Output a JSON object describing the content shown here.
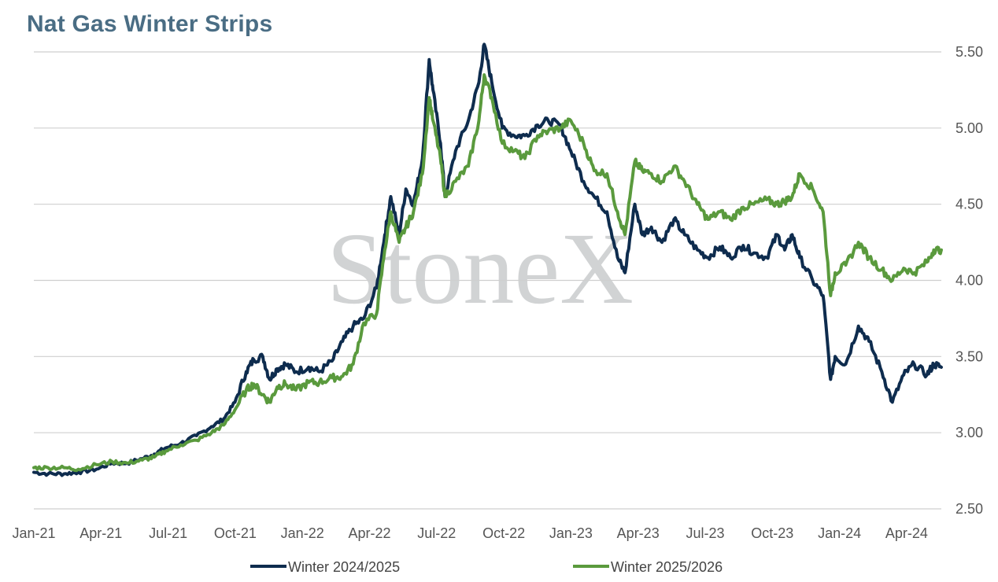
{
  "title": "Nat Gas Winter Strips",
  "watermark": "StoneX",
  "chart_data": {
    "type": "line",
    "title": "Nat Gas Winter Strips",
    "xlabel": "",
    "ylabel": "",
    "x_ticks": [
      "Jan-21",
      "Apr-21",
      "Jul-21",
      "Oct-21",
      "Jan-22",
      "Apr-22",
      "Jul-22",
      "Oct-22",
      "Jan-23",
      "Apr-23",
      "Jul-23",
      "Oct-23",
      "Jan-24",
      "Apr-24"
    ],
    "y_ticks": [
      "5.50",
      "5.00",
      "4.50",
      "4.00",
      "3.50",
      "3.00",
      "2.50"
    ],
    "ylim": [
      2.5,
      5.5
    ],
    "y_axis_side": "right",
    "grid": true,
    "legend_position": "bottom",
    "x_start": "2021-01-01",
    "x_end": "2024-04-20",
    "series": [
      {
        "name": "Winter 2024/2025",
        "color": "#0e2c4e",
        "points": [
          [
            "2021-01-01",
            2.74
          ],
          [
            "2021-01-20",
            2.73
          ],
          [
            "2021-02-10",
            2.73
          ],
          [
            "2021-03-01",
            2.74
          ],
          [
            "2021-03-25",
            2.76
          ],
          [
            "2021-04-15",
            2.8
          ],
          [
            "2021-05-05",
            2.8
          ],
          [
            "2021-05-25",
            2.83
          ],
          [
            "2021-06-10",
            2.86
          ],
          [
            "2021-06-25",
            2.9
          ],
          [
            "2021-07-15",
            2.93
          ],
          [
            "2021-08-05",
            2.98
          ],
          [
            "2021-08-25",
            3.04
          ],
          [
            "2021-09-10",
            3.09
          ],
          [
            "2021-09-25",
            3.2
          ],
          [
            "2021-10-10",
            3.4
          ],
          [
            "2021-10-20",
            3.48
          ],
          [
            "2021-11-01",
            3.5
          ],
          [
            "2021-11-10",
            3.35
          ],
          [
            "2021-11-20",
            3.42
          ],
          [
            "2021-12-01",
            3.45
          ],
          [
            "2021-12-15",
            3.4
          ],
          [
            "2022-01-01",
            3.43
          ],
          [
            "2022-01-15",
            3.4
          ],
          [
            "2022-02-01",
            3.47
          ],
          [
            "2022-02-15",
            3.6
          ],
          [
            "2022-03-01",
            3.7
          ],
          [
            "2022-03-15",
            3.75
          ],
          [
            "2022-04-01",
            3.95
          ],
          [
            "2022-04-12",
            4.3
          ],
          [
            "2022-04-20",
            4.55
          ],
          [
            "2022-05-01",
            4.3
          ],
          [
            "2022-05-10",
            4.6
          ],
          [
            "2022-05-20",
            4.5
          ],
          [
            "2022-06-01",
            4.8
          ],
          [
            "2022-06-10",
            5.45
          ],
          [
            "2022-06-15",
            5.25
          ],
          [
            "2022-06-25",
            4.9
          ],
          [
            "2022-07-01",
            4.55
          ],
          [
            "2022-07-15",
            4.85
          ],
          [
            "2022-08-01",
            5.05
          ],
          [
            "2022-08-15",
            5.3
          ],
          [
            "2022-08-22",
            5.55
          ],
          [
            "2022-09-01",
            5.3
          ],
          [
            "2022-09-15",
            5.0
          ],
          [
            "2022-10-01",
            4.95
          ],
          [
            "2022-10-15",
            4.95
          ],
          [
            "2022-11-01",
            5.02
          ],
          [
            "2022-11-15",
            5.05
          ],
          [
            "2022-12-01",
            5.02
          ],
          [
            "2022-12-15",
            4.85
          ],
          [
            "2023-01-01",
            4.65
          ],
          [
            "2023-01-15",
            4.55
          ],
          [
            "2023-02-01",
            4.45
          ],
          [
            "2023-02-15",
            4.15
          ],
          [
            "2023-02-25",
            4.05
          ],
          [
            "2023-03-10",
            4.5
          ],
          [
            "2023-03-20",
            4.3
          ],
          [
            "2023-04-01",
            4.35
          ],
          [
            "2023-04-15",
            4.25
          ],
          [
            "2023-05-01",
            4.4
          ],
          [
            "2023-05-15",
            4.3
          ],
          [
            "2023-06-01",
            4.2
          ],
          [
            "2023-06-15",
            4.15
          ],
          [
            "2023-07-01",
            4.22
          ],
          [
            "2023-07-15",
            4.15
          ],
          [
            "2023-08-01",
            4.23
          ],
          [
            "2023-08-15",
            4.18
          ],
          [
            "2023-09-01",
            4.15
          ],
          [
            "2023-09-15",
            4.3
          ],
          [
            "2023-09-25",
            4.2
          ],
          [
            "2023-10-05",
            4.3
          ],
          [
            "2023-10-15",
            4.15
          ],
          [
            "2023-11-01",
            4.0
          ],
          [
            "2023-11-15",
            3.9
          ],
          [
            "2023-11-25",
            3.35
          ],
          [
            "2023-12-01",
            3.5
          ],
          [
            "2023-12-15",
            3.45
          ],
          [
            "2024-01-01",
            3.7
          ],
          [
            "2024-01-15",
            3.6
          ],
          [
            "2024-02-01",
            3.4
          ],
          [
            "2024-02-15",
            3.2
          ],
          [
            "2024-03-01",
            3.38
          ],
          [
            "2024-03-15",
            3.45
          ],
          [
            "2024-04-01",
            3.38
          ],
          [
            "2024-04-10",
            3.45
          ],
          [
            "2024-04-20",
            3.43
          ]
        ]
      },
      {
        "name": "Winter 2025/2026",
        "color": "#5a9a3d",
        "points": [
          [
            "2021-01-01",
            2.77
          ],
          [
            "2021-01-20",
            2.77
          ],
          [
            "2021-02-10",
            2.77
          ],
          [
            "2021-03-01",
            2.76
          ],
          [
            "2021-03-25",
            2.79
          ],
          [
            "2021-04-15",
            2.81
          ],
          [
            "2021-05-05",
            2.8
          ],
          [
            "2021-05-25",
            2.82
          ],
          [
            "2021-06-10",
            2.84
          ],
          [
            "2021-06-25",
            2.88
          ],
          [
            "2021-07-15",
            2.92
          ],
          [
            "2021-08-05",
            2.95
          ],
          [
            "2021-08-25",
            3.0
          ],
          [
            "2021-09-10",
            3.05
          ],
          [
            "2021-09-25",
            3.15
          ],
          [
            "2021-10-10",
            3.28
          ],
          [
            "2021-10-20",
            3.32
          ],
          [
            "2021-11-01",
            3.25
          ],
          [
            "2021-11-10",
            3.2
          ],
          [
            "2021-11-20",
            3.3
          ],
          [
            "2021-12-01",
            3.32
          ],
          [
            "2021-12-15",
            3.28
          ],
          [
            "2022-01-01",
            3.33
          ],
          [
            "2022-01-15",
            3.33
          ],
          [
            "2022-02-01",
            3.36
          ],
          [
            "2022-02-15",
            3.37
          ],
          [
            "2022-03-01",
            3.45
          ],
          [
            "2022-03-15",
            3.72
          ],
          [
            "2022-04-01",
            3.78
          ],
          [
            "2022-04-12",
            4.2
          ],
          [
            "2022-04-20",
            4.45
          ],
          [
            "2022-05-01",
            4.25
          ],
          [
            "2022-05-10",
            4.35
          ],
          [
            "2022-05-20",
            4.45
          ],
          [
            "2022-06-01",
            4.7
          ],
          [
            "2022-06-10",
            5.2
          ],
          [
            "2022-06-15",
            5.05
          ],
          [
            "2022-06-25",
            4.8
          ],
          [
            "2022-07-01",
            4.55
          ],
          [
            "2022-07-15",
            4.65
          ],
          [
            "2022-08-01",
            4.75
          ],
          [
            "2022-08-15",
            5.05
          ],
          [
            "2022-08-22",
            5.35
          ],
          [
            "2022-09-01",
            5.2
          ],
          [
            "2022-09-15",
            4.9
          ],
          [
            "2022-10-01",
            4.85
          ],
          [
            "2022-10-15",
            4.8
          ],
          [
            "2022-11-01",
            4.95
          ],
          [
            "2022-11-15",
            4.98
          ],
          [
            "2022-12-01",
            5.0
          ],
          [
            "2022-12-15",
            5.05
          ],
          [
            "2023-01-01",
            4.9
          ],
          [
            "2023-01-15",
            4.72
          ],
          [
            "2023-02-01",
            4.7
          ],
          [
            "2023-02-15",
            4.45
          ],
          [
            "2023-02-25",
            4.3
          ],
          [
            "2023-03-10",
            4.78
          ],
          [
            "2023-03-20",
            4.72
          ],
          [
            "2023-04-01",
            4.7
          ],
          [
            "2023-04-15",
            4.65
          ],
          [
            "2023-05-01",
            4.75
          ],
          [
            "2023-05-15",
            4.65
          ],
          [
            "2023-06-01",
            4.5
          ],
          [
            "2023-06-15",
            4.4
          ],
          [
            "2023-07-01",
            4.45
          ],
          [
            "2023-07-15",
            4.4
          ],
          [
            "2023-08-01",
            4.48
          ],
          [
            "2023-08-15",
            4.5
          ],
          [
            "2023-09-01",
            4.53
          ],
          [
            "2023-09-15",
            4.5
          ],
          [
            "2023-09-25",
            4.52
          ],
          [
            "2023-10-05",
            4.55
          ],
          [
            "2023-10-15",
            4.7
          ],
          [
            "2023-11-01",
            4.6
          ],
          [
            "2023-11-15",
            4.45
          ],
          [
            "2023-11-25",
            3.9
          ],
          [
            "2023-12-01",
            4.05
          ],
          [
            "2023-12-15",
            4.1
          ],
          [
            "2024-01-01",
            4.25
          ],
          [
            "2024-01-15",
            4.15
          ],
          [
            "2024-02-01",
            4.07
          ],
          [
            "2024-02-15",
            4.0
          ],
          [
            "2024-03-01",
            4.08
          ],
          [
            "2024-03-15",
            4.05
          ],
          [
            "2024-04-01",
            4.12
          ],
          [
            "2024-04-10",
            4.2
          ],
          [
            "2024-04-20",
            4.2
          ]
        ]
      }
    ]
  }
}
